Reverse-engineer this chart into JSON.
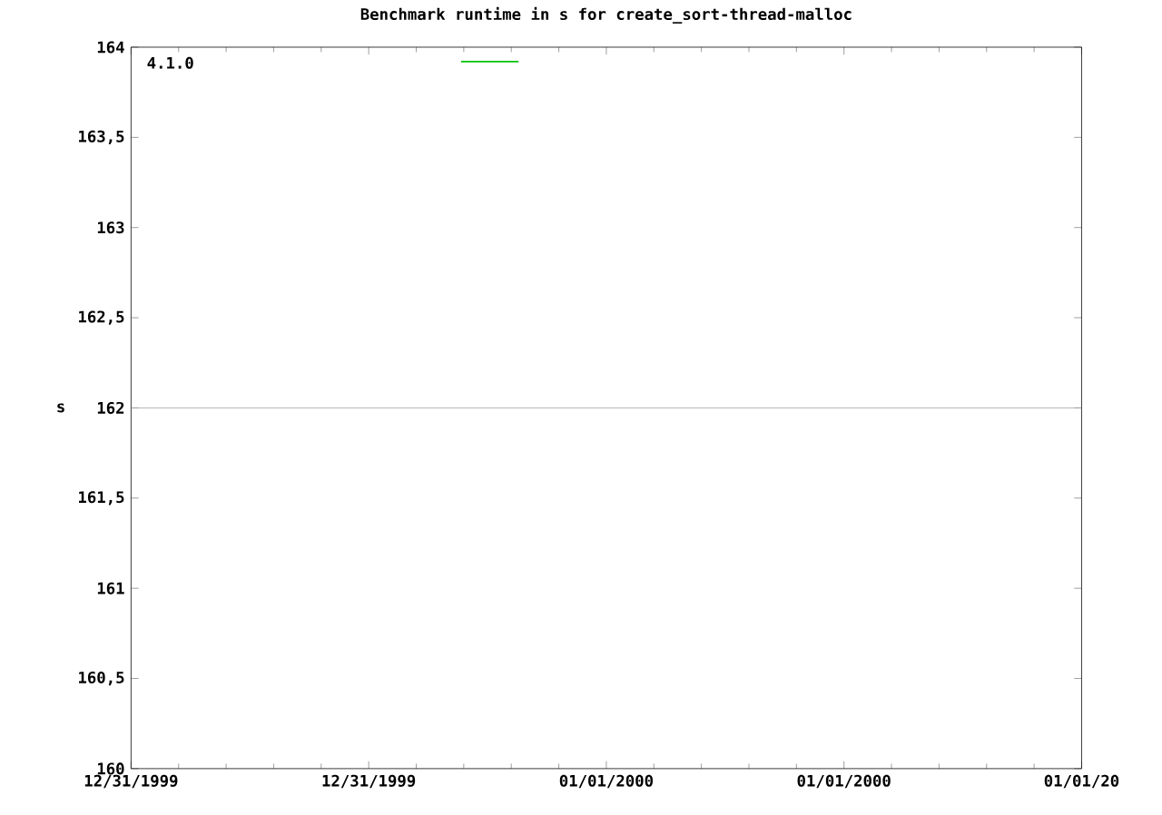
{
  "chart_data": {
    "type": "line",
    "title": "Benchmark runtime in s for create_sort-thread-malloc",
    "ylabel": "s",
    "x": [
      "1999-12-31T20:20",
      "1999-12-31T21:47"
    ],
    "series": [
      {
        "color": "#00c000",
        "values": [
          163.92,
          163.92
        ]
      }
    ],
    "annotations": [
      "4.1.0"
    ],
    "xlim": [
      "1999-12-31T12:00",
      "2000-01-01T12:00"
    ],
    "xticks": [
      {
        "value": "1999-12-31T12:00",
        "label": "12/31/1999"
      },
      {
        "value": "1999-12-31T18:00",
        "label": "12/31/1999"
      },
      {
        "value": "2000-01-01T00:00",
        "label": "01/01/2000"
      },
      {
        "value": "2000-01-01T06:00",
        "label": "01/01/2000"
      },
      {
        "value": "2000-01-01T12:00",
        "label": "01/01/20"
      }
    ],
    "ylim": [
      160,
      164
    ],
    "yticks": [
      160,
      {
        "value": 160.5,
        "label": "160,5"
      },
      161,
      {
        "value": 161.5,
        "label": "161,5"
      },
      162,
      {
        "value": 162.5,
        "label": "162,5"
      },
      163,
      {
        "value": 163.5,
        "label": "163,5"
      },
      164
    ],
    "ref_lines": [
      {
        "axis": "y",
        "value": 162,
        "color": "#a0a0a0"
      }
    ],
    "marker": "none",
    "line_style": "solid",
    "grid": false
  }
}
